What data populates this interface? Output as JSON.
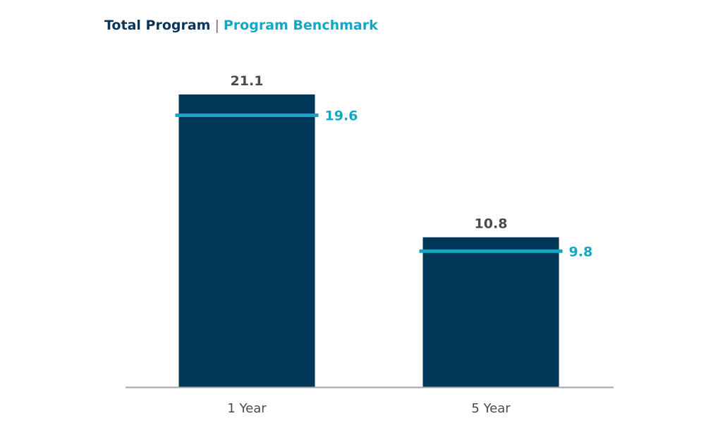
{
  "legend": {
    "primary_label": "Total Program",
    "separator": "|",
    "benchmark_label": "Program Benchmark"
  },
  "colors": {
    "bar": "#003658",
    "benchmark": "#12a8c4",
    "legend_primary": "#0c3457",
    "value_label": "#4a4a4a",
    "axis": "#a6a6a6",
    "tick_label": "#4a4a4a"
  },
  "chart_data": {
    "type": "bar",
    "categories": [
      "1 Year",
      "5 Year"
    ],
    "series": [
      {
        "name": "Total Program",
        "values": [
          21.1,
          10.8
        ]
      },
      {
        "name": "Program Benchmark",
        "values": [
          19.6,
          9.8
        ],
        "style": "marker-line"
      }
    ],
    "data_labels": {
      "bars": [
        "21.1",
        "10.8"
      ],
      "benchmark": [
        "19.6",
        "9.8"
      ]
    },
    "xlabel": "",
    "ylabel": "",
    "ylim": [
      0,
      21.1
    ],
    "grid": false,
    "legend_position": "top-left"
  }
}
